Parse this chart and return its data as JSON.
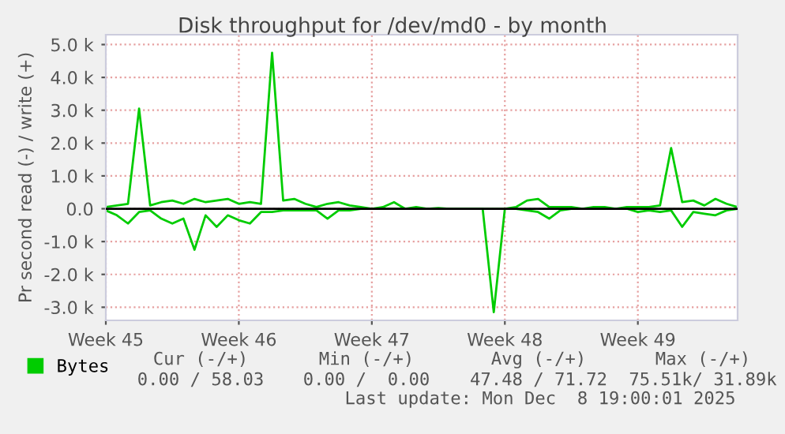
{
  "chart_data": {
    "type": "line",
    "title": "Disk throughput for /dev/md0 - by month",
    "ylabel": "Pr second read (-) / write (+)",
    "categories": [
      "Week 45",
      null,
      null,
      null,
      null,
      null,
      null,
      null,
      null,
      null,
      null,
      null,
      "Week 46",
      null,
      null,
      null,
      null,
      null,
      null,
      null,
      null,
      null,
      null,
      null,
      "Week 47",
      null,
      null,
      null,
      null,
      null,
      null,
      null,
      null,
      null,
      null,
      null,
      "Week 48",
      null,
      null,
      null,
      null,
      null,
      null,
      null,
      null,
      null,
      null,
      null,
      "Week 49",
      null,
      null,
      null,
      null,
      null,
      null,
      null,
      null,
      null
    ],
    "ylim": [
      -3400,
      5300
    ],
    "yticks": [
      {
        "value": -3000,
        "label": "-3.0 k"
      },
      {
        "value": -2000,
        "label": "-2.0 k"
      },
      {
        "value": -1000,
        "label": "-1.0 k"
      },
      {
        "value": 0,
        "label": "0.0"
      },
      {
        "value": 1000,
        "label": "1.0 k"
      },
      {
        "value": 2000,
        "label": "2.0 k"
      },
      {
        "value": 3000,
        "label": "3.0 k"
      },
      {
        "value": 4000,
        "label": "4.0 k"
      },
      {
        "value": 5000,
        "label": "5.0 k"
      }
    ],
    "grid": true,
    "legend": "bottom",
    "marker": "none",
    "line_style": "solid",
    "ref_lines": [
      {
        "axis": "y",
        "value": 0,
        "color": "#000000"
      }
    ],
    "series": [
      {
        "name": "Bytes",
        "color": "#00cc00",
        "values": [
          50,
          100,
          150,
          3050,
          100,
          200,
          250,
          150,
          300,
          200,
          250,
          300,
          150,
          200,
          150,
          4750,
          250,
          300,
          150,
          50,
          150,
          200,
          100,
          50,
          0,
          50,
          200,
          0,
          50,
          0,
          20,
          0,
          0,
          0,
          0,
          0,
          0,
          50,
          250,
          300,
          50,
          50,
          50,
          0,
          50,
          50,
          0,
          50,
          50,
          50,
          100,
          1850,
          200,
          250,
          100,
          300,
          150,
          50
        ]
      },
      {
        "color": "#00cc00",
        "values": [
          -50,
          -200,
          -450,
          -100,
          -50,
          -300,
          -450,
          -300,
          -1250,
          -200,
          -550,
          -200,
          -350,
          -450,
          -100,
          -100,
          -50,
          -50,
          -50,
          -50,
          -300,
          -50,
          -50,
          0,
          0,
          0,
          0,
          0,
          0,
          0,
          0,
          0,
          0,
          0,
          0,
          -3150,
          0,
          0,
          -50,
          -100,
          -300,
          -50,
          0,
          0,
          0,
          0,
          0,
          0,
          -100,
          -50,
          -100,
          -50,
          -550,
          -100,
          -150,
          -200,
          -50,
          0
        ]
      }
    ],
    "annotations": [
      "Cur (-/+)",
      "Min (-/+)",
      "Avg (-/+)",
      "Max (-/+)",
      "0.00 / 58.03",
      "0.00 /  0.00",
      "47.48 / 71.72",
      "75.51k/ 31.89k",
      "Last update: Mon Dec  8 19:00:01 2025"
    ]
  }
}
